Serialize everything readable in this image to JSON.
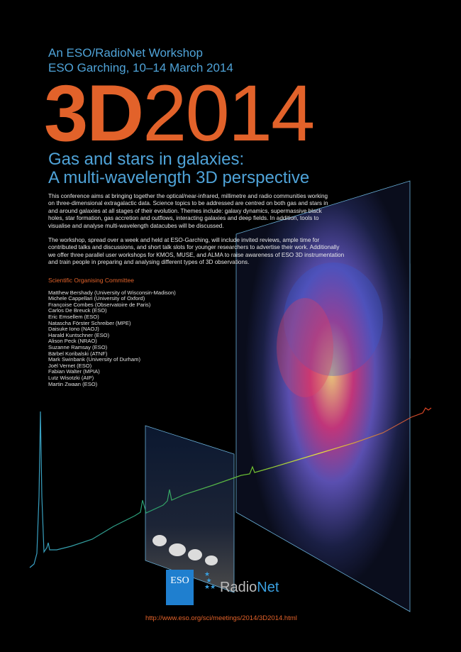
{
  "header": {
    "line1": "An ESO/RadioNet Workshop",
    "line2": "ESO Garching, 10–14 March 2014"
  },
  "title": {
    "bold": "3D",
    "regular": "2014"
  },
  "subtitle": {
    "line1": "Gas and stars in galaxies:",
    "line2": "A multi-wavelength 3D perspective"
  },
  "paragraphs": [
    "This conference aims at bringing together the optical/near-infrared, millimetre and radio communities working on three-dimensional extragalactic data. Science topics to be addressed are centred on both gas and stars in and around galaxies at all stages of their evolution. Themes include: galaxy dynamics, supermassive black holes, star formation, gas accretion and outflows, interacting galaxies and deep fields. In addition, tools to visualise and analyse multi-wavelength datacubes will be discussed.",
    "The workshop, spread over a week and held at ESO-Garching, will include invited reviews, ample time for contributed talks and discussions, and short talk slots for younger researchers to advertise their work. Additionally we offer three parallel user workshops for KMOS, MUSE, and ALMA to raise awareness of ESO 3D instrumentation and train people in preparing and analysing different types of 3D observations."
  ],
  "committee": {
    "title": "Scientific Organising Committee",
    "members": [
      "Matthew Bershady (University of Wisconsin-Madison)",
      "Michele Cappellari (University of Oxford)",
      "Françoise Combes (Observatoire de Paris)",
      "Carlos De Breuck (ESO)",
      "Eric Emsellem (ESO)",
      "Natascha Förster Schreiber (MPE)",
      "Daisuke Iono (NAOJ)",
      "Harald Kuntschner (ESO)",
      "Alison Peck (NRAO)",
      "Suzanne Ramsay (ESO)",
      "Bärbel Koribalski (ATNF)",
      "Mark Swinbank (University of Durham)",
      "Joël Vernet (ESO)",
      "Fabian Walter (MPIA)",
      "Lutz Wisotzki (AIP)",
      "Martin Zwaan (ESO)"
    ]
  },
  "logos": {
    "eso": "ESO",
    "radionet_a": "Radio",
    "radionet_b": "Net"
  },
  "url": "http://www.eso.org/sci/meetings/2014/3D2014.html",
  "colors": {
    "accent_orange": "#e2622a",
    "accent_blue": "#4fa3d8",
    "eso_blue": "#1f7fcf"
  }
}
